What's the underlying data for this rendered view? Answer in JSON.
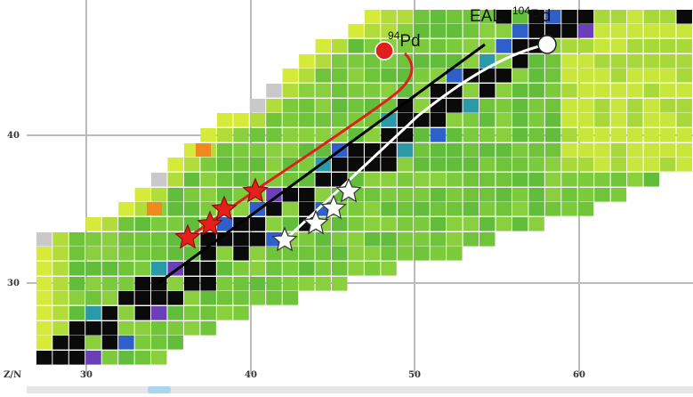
{
  "labels": {
    "eal": "EAL",
    "pd104_mass": "104",
    "pd104_symbol": "Pd",
    "pd94_mass": "94",
    "pd94_symbol": "Pd"
  },
  "axes": {
    "corner": "Z/N",
    "x_ticks": [
      "30",
      "40",
      "50",
      "60"
    ],
    "y_ticks": [
      "40",
      "30"
    ]
  }
}
